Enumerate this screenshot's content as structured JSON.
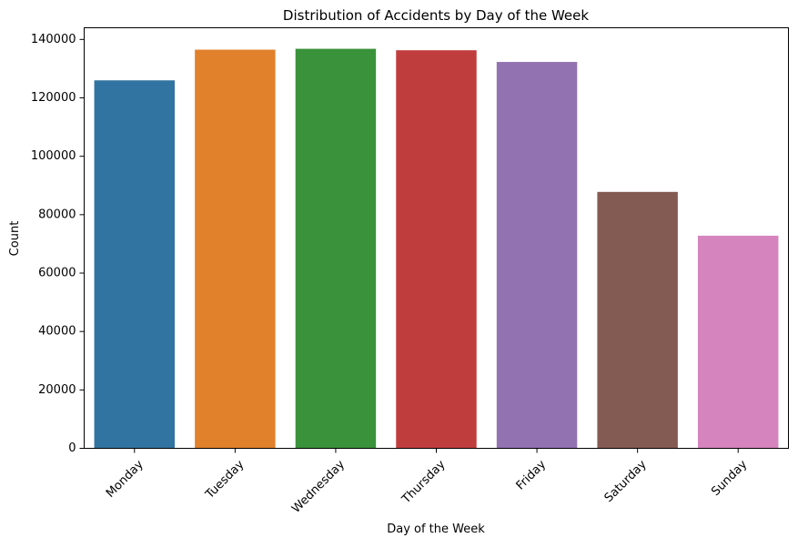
{
  "chart_data": {
    "type": "bar",
    "title": "Distribution of Accidents by Day of the Week",
    "xlabel": "Day of the Week",
    "ylabel": "Count",
    "categories": [
      "Monday",
      "Tuesday",
      "Wednesday",
      "Thursday",
      "Friday",
      "Saturday",
      "Sunday"
    ],
    "values": [
      126000,
      136500,
      136800,
      136300,
      132300,
      87800,
      72800
    ],
    "colors": [
      "#3274a1",
      "#e1812c",
      "#3a923a",
      "#c03d3e",
      "#9372b2",
      "#845b53",
      "#d684bd"
    ],
    "ylim": [
      0,
      144000
    ],
    "yticks": [
      0,
      20000,
      40000,
      60000,
      80000,
      100000,
      120000,
      140000
    ],
    "ytick_labels": [
      "0",
      "20000",
      "40000",
      "60000",
      "80000",
      "100000",
      "120000",
      "140000"
    ],
    "grid": false,
    "legend": "none",
    "xtick_rotation": "45°"
  }
}
